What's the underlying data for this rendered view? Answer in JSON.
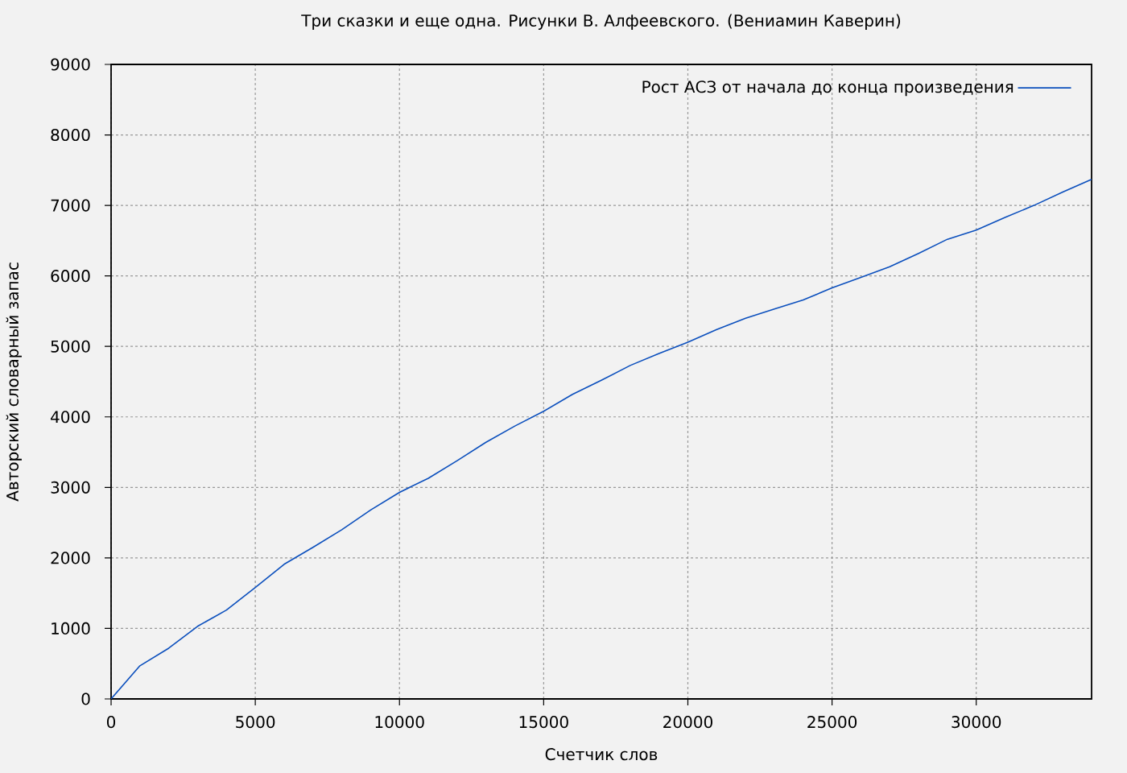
{
  "chart_data": {
    "type": "line",
    "title": "Три сказки и еще одна. Рисунки В. Алфеевского. (Вениамин Каверин)",
    "xlabel": "Счетчик слов",
    "ylabel": "Авторский словарный запас",
    "x": [
      0,
      1000,
      2000,
      3000,
      4000,
      5000,
      6000,
      7000,
      8000,
      9000,
      10000,
      11000,
      12000,
      13000,
      14000,
      15000,
      16000,
      17000,
      18000,
      19000,
      20000,
      21000,
      22000,
      23000,
      24000,
      25000,
      26000,
      27000,
      28000,
      29000,
      30000,
      31000,
      32000,
      33000,
      34000
    ],
    "series": [
      {
        "name": "Рост АСЗ от начала до конца произведения",
        "color": "#0b4fbd",
        "values": [
          0,
          470,
          720,
          1030,
          1260,
          1580,
          1910,
          2150,
          2400,
          2680,
          2930,
          3130,
          3380,
          3640,
          3870,
          4080,
          4320,
          4520,
          4730,
          4900,
          5060,
          5240,
          5400,
          5530,
          5660,
          5830,
          5980,
          6130,
          6320,
          6520,
          6650,
          6830,
          7000,
          7190,
          7370
        ]
      }
    ],
    "xlim": [
      0,
      34000
    ],
    "ylim": [
      0,
      9000
    ],
    "xticks": [
      0,
      5000,
      10000,
      15000,
      20000,
      25000,
      30000
    ],
    "yticks": [
      0,
      1000,
      2000,
      3000,
      4000,
      5000,
      6000,
      7000,
      8000,
      9000
    ],
    "grid": true,
    "legend": "top right"
  }
}
